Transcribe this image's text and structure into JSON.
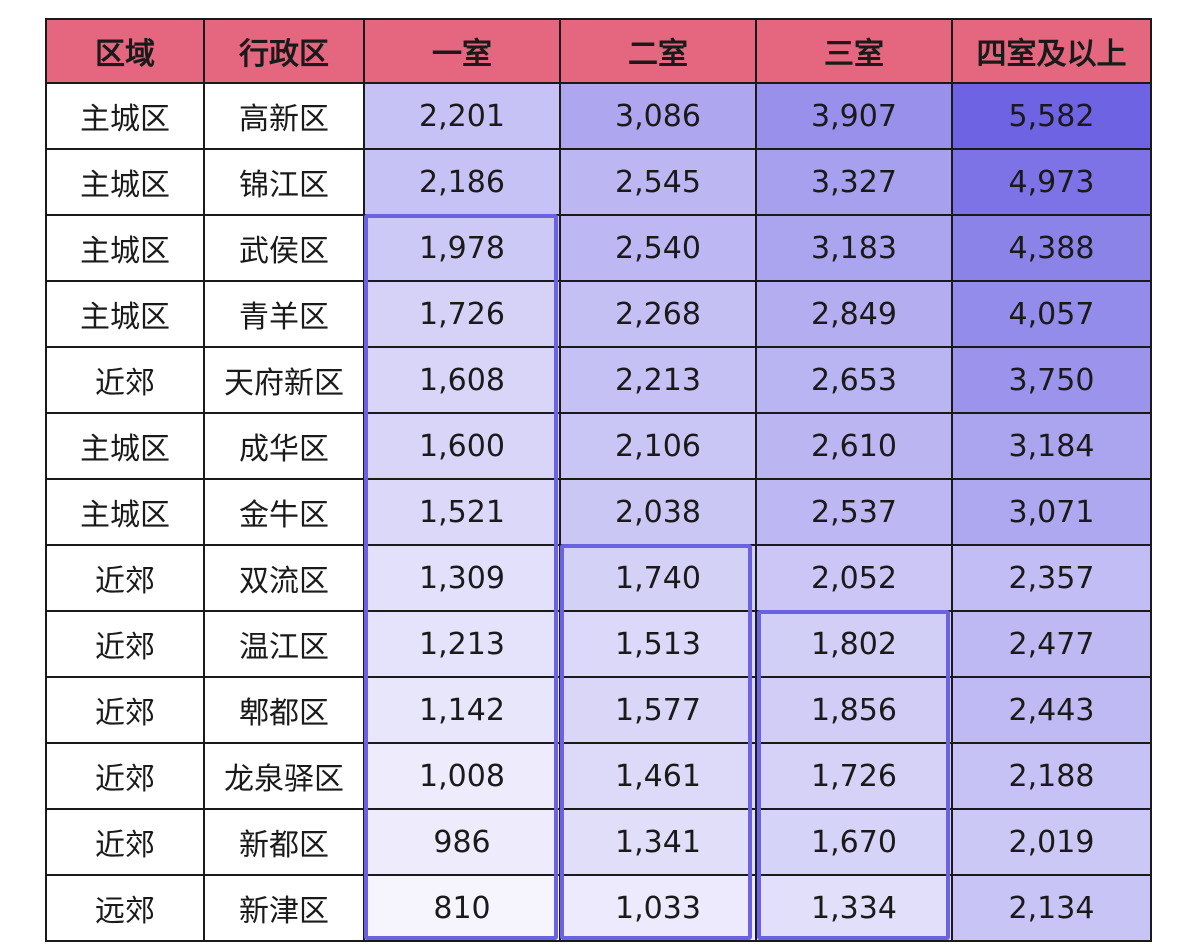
{
  "table": {
    "headers": [
      "区域",
      "行政区",
      "一室",
      "二室",
      "三室",
      "四室及以上"
    ],
    "rows": [
      {
        "zone": "主城区",
        "district": "高新区",
        "values": [
          2201,
          3086,
          3907,
          5582
        ],
        "display": [
          "2,201",
          "3,086",
          "3,907",
          "5,582"
        ]
      },
      {
        "zone": "主城区",
        "district": "锦江区",
        "values": [
          2186,
          2545,
          3327,
          4973
        ],
        "display": [
          "2,186",
          "2,545",
          "3,327",
          "4,973"
        ]
      },
      {
        "zone": "主城区",
        "district": "武侯区",
        "values": [
          1978,
          2540,
          3183,
          4388
        ],
        "display": [
          "1,978",
          "2,540",
          "3,183",
          "4,388"
        ]
      },
      {
        "zone": "主城区",
        "district": "青羊区",
        "values": [
          1726,
          2268,
          2849,
          4057
        ],
        "display": [
          "1,726",
          "2,268",
          "2,849",
          "4,057"
        ]
      },
      {
        "zone": "近郊",
        "district": "天府新区",
        "values": [
          1608,
          2213,
          2653,
          3750
        ],
        "display": [
          "1,608",
          "2,213",
          "2,653",
          "3,750"
        ]
      },
      {
        "zone": "主城区",
        "district": "成华区",
        "values": [
          1600,
          2106,
          2610,
          3184
        ],
        "display": [
          "1,600",
          "2,106",
          "2,610",
          "3,184"
        ]
      },
      {
        "zone": "主城区",
        "district": "金牛区",
        "values": [
          1521,
          2038,
          2537,
          3071
        ],
        "display": [
          "1,521",
          "2,038",
          "2,537",
          "3,071"
        ]
      },
      {
        "zone": "近郊",
        "district": "双流区",
        "values": [
          1309,
          1740,
          2052,
          2357
        ],
        "display": [
          "1,309",
          "1,740",
          "2,052",
          "2,357"
        ]
      },
      {
        "zone": "近郊",
        "district": "温江区",
        "values": [
          1213,
          1513,
          1802,
          2477
        ],
        "display": [
          "1,213",
          "1,513",
          "1,802",
          "2,477"
        ]
      },
      {
        "zone": "近郊",
        "district": "郫都区",
        "values": [
          1142,
          1577,
          1856,
          2443
        ],
        "display": [
          "1,142",
          "1,577",
          "1,856",
          "2,443"
        ]
      },
      {
        "zone": "近郊",
        "district": "龙泉驿区",
        "values": [
          1008,
          1461,
          1726,
          2188
        ],
        "display": [
          "1,008",
          "1,461",
          "1,726",
          "2,188"
        ]
      },
      {
        "zone": "近郊",
        "district": "新都区",
        "values": [
          986,
          1341,
          1670,
          2019
        ],
        "display": [
          "986",
          "1,341",
          "1,670",
          "2,019"
        ]
      },
      {
        "zone": "远郊",
        "district": "新津区",
        "values": [
          810,
          1033,
          1334,
          2134
        ],
        "display": [
          "810",
          "1,033",
          "1,334",
          "2,134"
        ]
      }
    ]
  },
  "colors": {
    "header_bg": "#e5677f",
    "heat_low": "#f6f5fe",
    "heat_high": "#6e63e3",
    "highlight_border": "#6a62e0",
    "grid": "#1a1a1a"
  },
  "heat_scale": {
    "min": 810,
    "max": 5582
  }
}
